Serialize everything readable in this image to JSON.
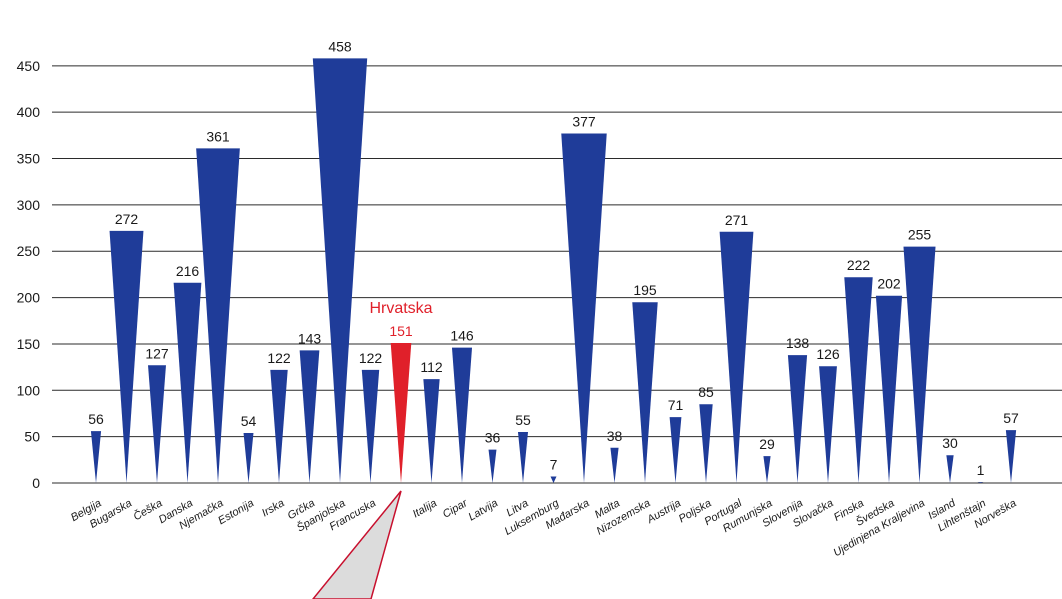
{
  "chart_data": {
    "type": "bar",
    "bar_shape": "inverted-triangle",
    "ylim": [
      0,
      480
    ],
    "yticks": [
      0,
      50,
      100,
      150,
      200,
      250,
      300,
      350,
      400,
      450
    ],
    "grid": "horizontal",
    "colors": {
      "bar": "#1f3c99",
      "highlight": "#e0202a",
      "callout_fill": "#dcdcdc"
    },
    "highlight_label": "Hrvatska",
    "categories": [
      "Belgija",
      "Bugarska",
      "Češka",
      "Danska",
      "Njemačka",
      "Estonija",
      "Irska",
      "Grčka",
      "Španjolska",
      "Francuska",
      "Hrvatska",
      "Italija",
      "Cipar",
      "Latvija",
      "Litva",
      "Luksemburg",
      "Mađarska",
      "Malta",
      "Nizozemska",
      "Austrija",
      "Poljska",
      "Portugal",
      "Rumunjska",
      "Slovenija",
      "Slovačka",
      "Finska",
      "Švedska",
      "Ujedinjena Kraljevina",
      "Island",
      "Lihtenštajn",
      "Norveška"
    ],
    "axis_labels": [
      "Belgija",
      "Bugarska",
      "Češka",
      "Danska",
      "Njemačka",
      "Estonija",
      "Irska",
      "Grčka",
      "Španjolska",
      "Francuska",
      "",
      "Italija",
      "Cipar",
      "Latvija",
      "Litva",
      "Luksemburg",
      "Mađarska",
      "Malta",
      "Nizozemska",
      "Austrija",
      "Poljska",
      "Portugal",
      "Rumunjska",
      "Slovenija",
      "Slovačka",
      "Finska",
      "Švedska",
      "Ujedinjena Kraljevina",
      "Island",
      "Lihtenštajn",
      "Norveška"
    ],
    "values": [
      56,
      272,
      127,
      216,
      361,
      54,
      122,
      143,
      458,
      122,
      151,
      112,
      146,
      36,
      55,
      7,
      377,
      38,
      195,
      71,
      85,
      271,
      29,
      138,
      126,
      222,
      202,
      255,
      30,
      1,
      57
    ],
    "highlight_index": 10
  }
}
